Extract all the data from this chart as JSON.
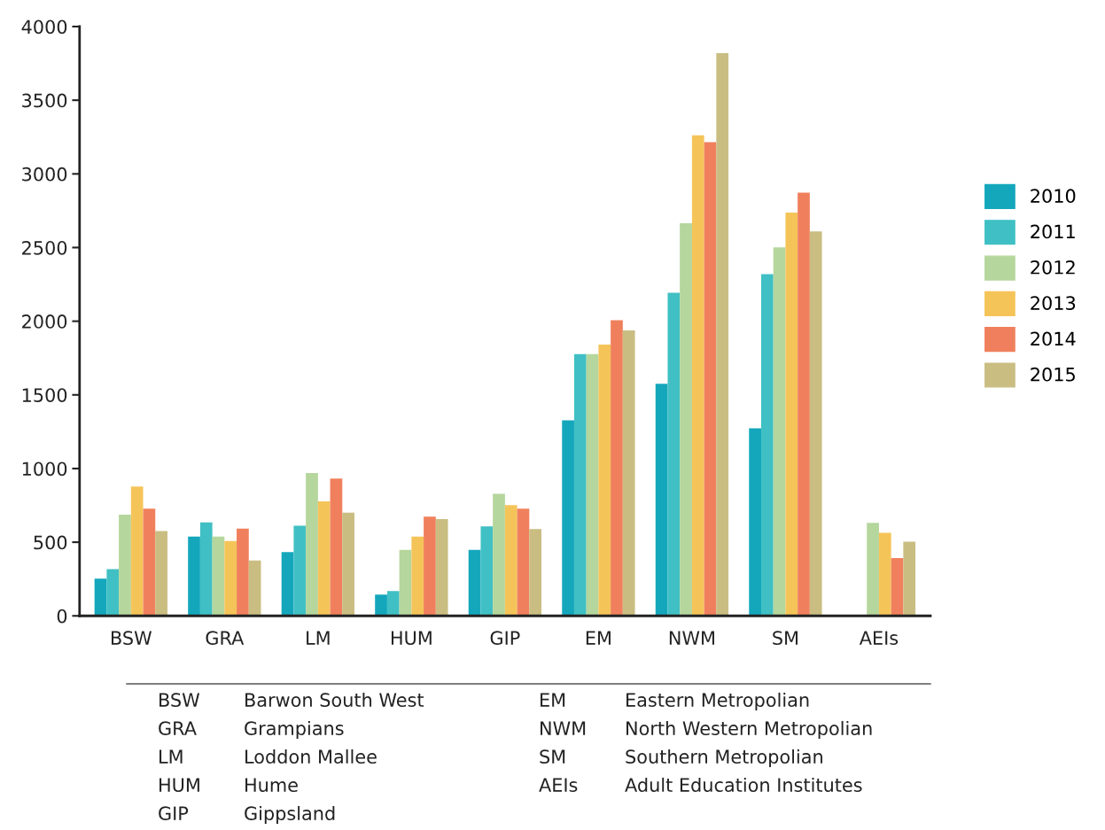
{
  "chart_data": {
    "type": "bar",
    "categories": [
      "BSW",
      "GRA",
      "LM",
      "HUM",
      "GIP",
      "EM",
      "NWM",
      "SM",
      "AEIs"
    ],
    "series": [
      {
        "name": "2010",
        "color": "#14a7bc",
        "values": [
          253,
          538,
          433,
          145,
          448,
          1327,
          1575,
          1273,
          null
        ]
      },
      {
        "name": "2011",
        "color": "#40c0c4",
        "values": [
          317,
          634,
          612,
          169,
          608,
          1777,
          2193,
          2319,
          null
        ]
      },
      {
        "name": "2012",
        "color": "#b5d69c",
        "values": [
          687,
          538,
          970,
          448,
          829,
          1777,
          2665,
          2501,
          631
        ]
      },
      {
        "name": "2013",
        "color": "#f5c459",
        "values": [
          878,
          508,
          777,
          538,
          752,
          1842,
          3262,
          2738,
          564
        ]
      },
      {
        "name": "2014",
        "color": "#f0805d",
        "values": [
          728,
          593,
          932,
          674,
          728,
          2007,
          3215,
          2872,
          392
        ]
      },
      {
        "name": "2015",
        "color": "#c9bd82",
        "values": [
          576,
          376,
          701,
          657,
          589,
          1937,
          3820,
          2610,
          504
        ]
      }
    ],
    "ylim": [
      0,
      4000
    ],
    "yticks": [
      0,
      500,
      1000,
      1500,
      2000,
      2500,
      3000,
      3500,
      4000
    ],
    "legend": "right",
    "grid": false,
    "annotations": [
      "BSW Barwon South West",
      "GRA Grampians",
      "LM Loddon Mallee",
      "HUM Hume",
      "GIP Gippsland",
      "EM Eastern Metropolian",
      "NWM North Western Metropolian",
      "SM Southern Metropolian",
      "AEIs Adult Education Institutes"
    ]
  }
}
